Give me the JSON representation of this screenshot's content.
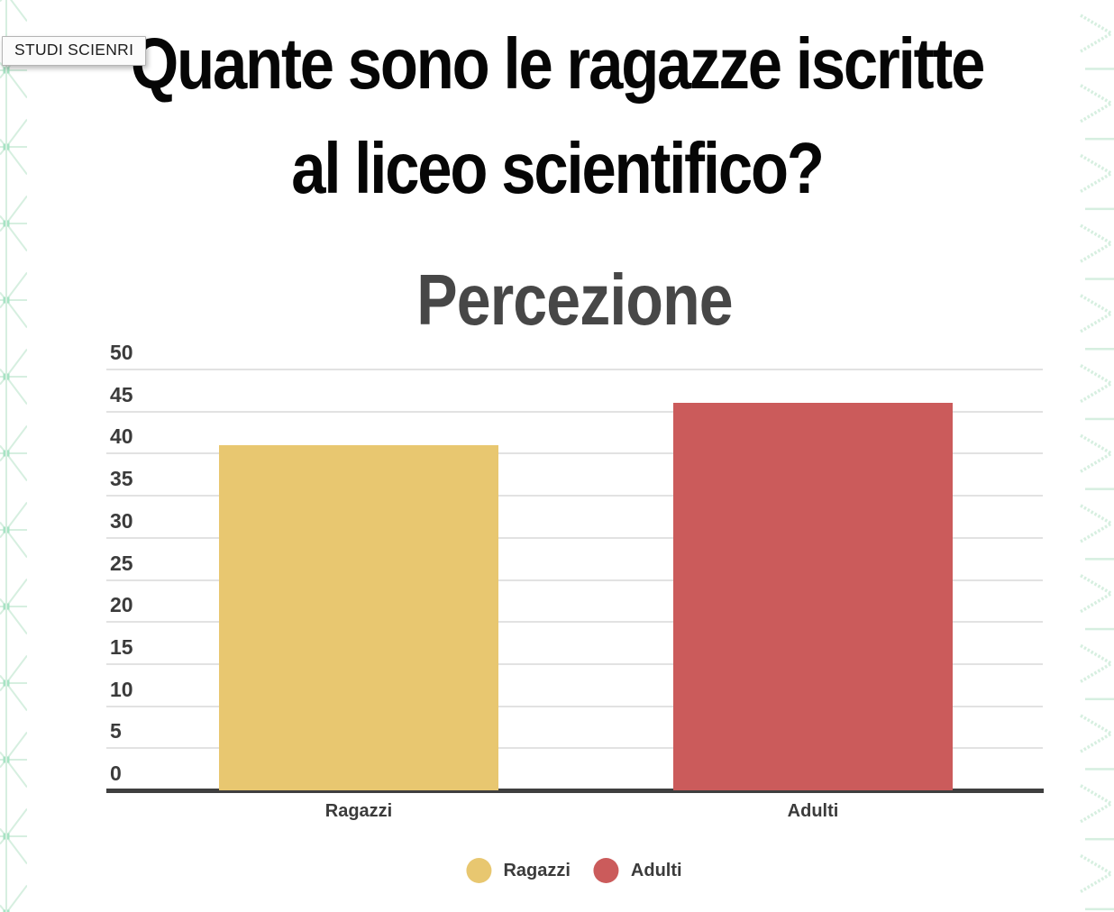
{
  "tooltip": {
    "text": "STUDI SCIENRI"
  },
  "slide": {
    "title_line1": "Quante sono le ragazze iscritte",
    "title_line2": "al liceo scientifico?"
  },
  "chart_data": {
    "type": "bar",
    "title": "Percezione",
    "categories": [
      "Ragazzi",
      "Adulti"
    ],
    "values": [
      41,
      46
    ],
    "bar_colors": [
      "#e8c770",
      "#cb5b5b"
    ],
    "xlabel": "",
    "ylabel": "",
    "ylim": [
      0,
      50
    ],
    "y_ticks": [
      0,
      5,
      10,
      15,
      20,
      25,
      30,
      35,
      40,
      45,
      50
    ],
    "grid": true,
    "legend_position": "bottom",
    "legend": [
      {
        "label": "Ragazzi",
        "color": "#e8c770"
      },
      {
        "label": "Adulti",
        "color": "#cb5b5b"
      }
    ],
    "axis_color": "#3f3f3f",
    "gridline_color": "#e2e2e2",
    "text_color": "#3b3b3b"
  },
  "decor": {
    "mint": "#d6efe0",
    "mint_dark": "#a7e3c4"
  }
}
